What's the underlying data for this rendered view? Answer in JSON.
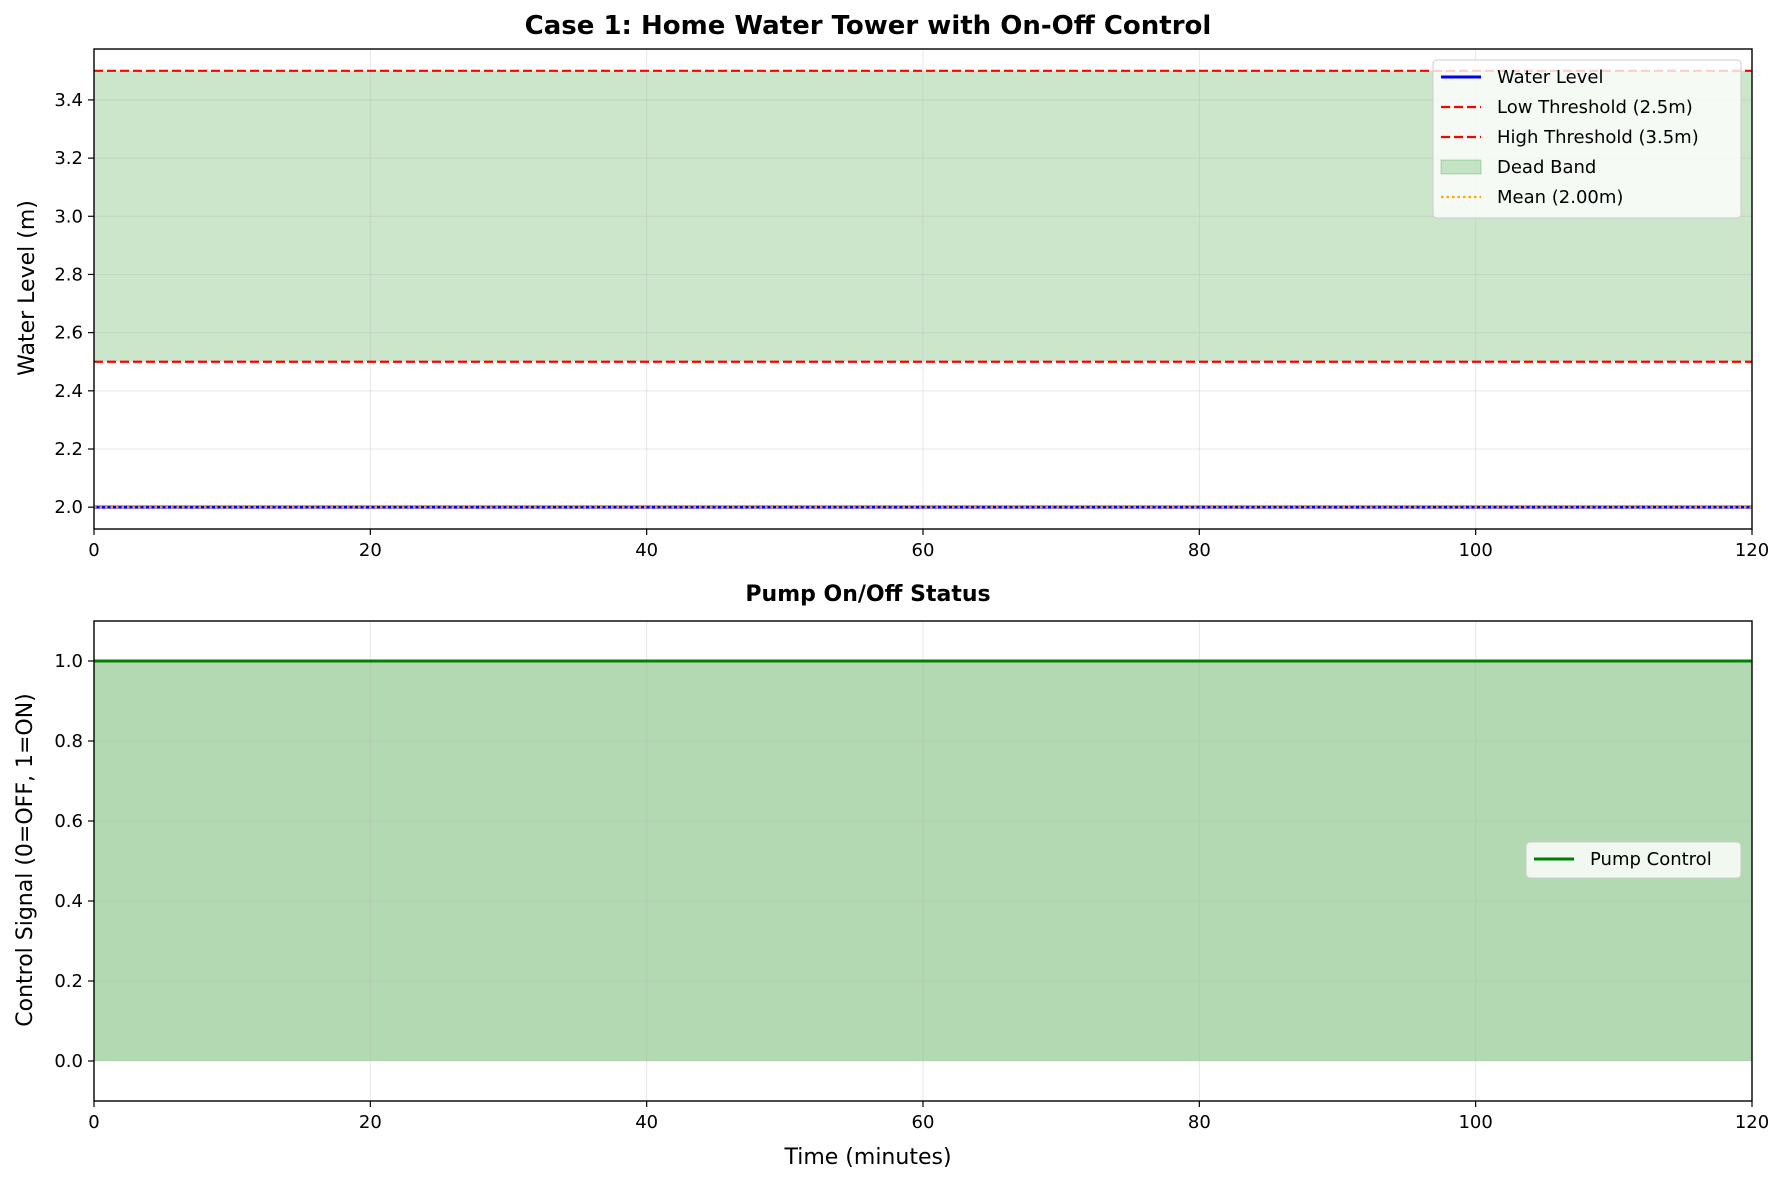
{
  "chart_data": [
    {
      "type": "line",
      "title": "Case 1: Home Water Tower with On-Off Control",
      "xlabel": "",
      "ylabel": "Water Level (m)",
      "xlim": [
        0,
        120
      ],
      "ylim": [
        1.925,
        3.575
      ],
      "xticks": [
        0,
        20,
        40,
        60,
        80,
        100,
        120
      ],
      "yticks": [
        2.0,
        2.2,
        2.4,
        2.6,
        2.8,
        3.0,
        3.2,
        3.4
      ],
      "grid": true,
      "legend_position": "top-right",
      "series": [
        {
          "name": "Water Level",
          "style": "solid",
          "color": "#0000ff",
          "x": [
            0,
            120
          ],
          "values": [
            2.0,
            2.0
          ]
        },
        {
          "name": "Low Threshold (2.5m)",
          "style": "dashed",
          "color": "#ff0000",
          "value": 2.5
        },
        {
          "name": "High Threshold (3.5m)",
          "style": "dashed",
          "color": "#ff0000",
          "value": 3.5
        },
        {
          "name": "Dead Band",
          "style": "band",
          "color": "#008000",
          "from": 2.5,
          "to": 3.5
        },
        {
          "name": "Mean (2.00m)",
          "style": "dotted",
          "color": "#ffa500",
          "value": 2.0
        }
      ]
    },
    {
      "type": "area",
      "title": "Pump On/Off Status",
      "xlabel": "Time (minutes)",
      "ylabel": "Control Signal (0=OFF, 1=ON)",
      "xlim": [
        0,
        120
      ],
      "ylim": [
        -0.1,
        1.1
      ],
      "xticks": [
        0,
        20,
        40,
        60,
        80,
        100,
        120
      ],
      "yticks": [
        0.0,
        0.2,
        0.4,
        0.6,
        0.8,
        1.0
      ],
      "grid": true,
      "legend_position": "center-right",
      "series": [
        {
          "name": "Pump Control",
          "style": "solid",
          "color": "#008000",
          "x": [
            0,
            120
          ],
          "values": [
            1,
            1
          ],
          "fill_to": 0
        }
      ]
    }
  ]
}
